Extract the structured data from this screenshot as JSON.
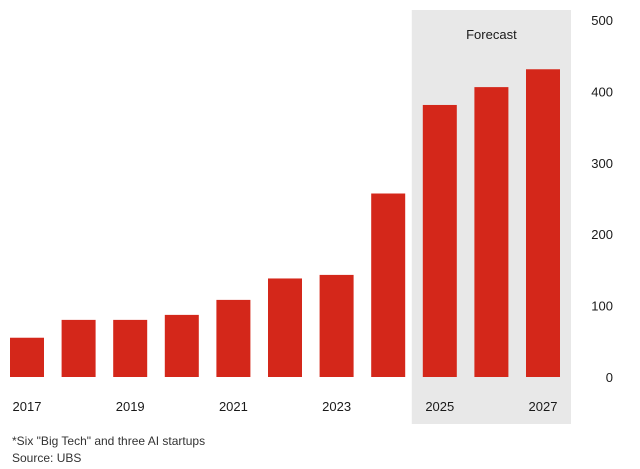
{
  "chart_data": {
    "type": "bar",
    "title": "",
    "xlabel": "",
    "ylabel": "",
    "categories": [
      "2017",
      "2018",
      "2019",
      "2020",
      "2021",
      "2022",
      "2023",
      "2024",
      "2025",
      "2026",
      "2027"
    ],
    "x_tick_labels": [
      "2017",
      "2019",
      "2021",
      "2023",
      "2025",
      "2027"
    ],
    "values": [
      55,
      80,
      80,
      87,
      108,
      138,
      143,
      257,
      381,
      406,
      431
    ],
    "ylim": [
      0,
      500
    ],
    "y_ticks": [
      0,
      100,
      200,
      300,
      400,
      500
    ],
    "y_axis_side": "right",
    "grid": false,
    "forecast": {
      "label": "Forecast",
      "start_category": "2025",
      "end_category": "2027",
      "shade_color": "#e8e8e8"
    },
    "bar_color": "#d4271a"
  },
  "footnotes": {
    "note": "*Six \"Big Tech\" and three AI startups",
    "source": "Source: UBS"
  }
}
